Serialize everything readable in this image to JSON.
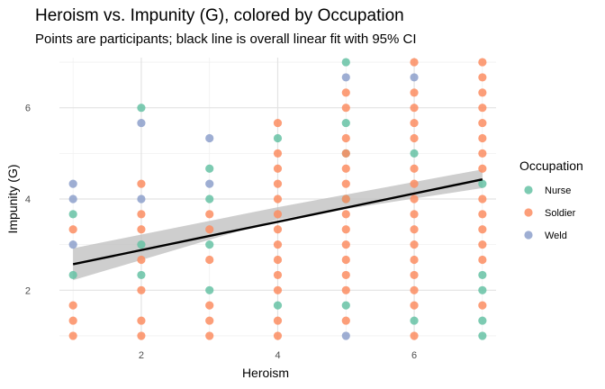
{
  "chart_data": {
    "type": "scatter",
    "title": "Heroism vs. Impunity (G), colored by Occupation",
    "subtitle": "Points are participants; black line is overall linear fit with 95% CI",
    "xlabel": "Heroism",
    "ylabel": "Impunity (G)",
    "xlim": [
      0.8,
      7.2
    ],
    "ylim": [
      0.9,
      7.1
    ],
    "x_ticks": [
      2,
      4,
      6
    ],
    "y_ticks": [
      2,
      4,
      6
    ],
    "grid": true,
    "legend": {
      "title": "Occupation",
      "position": "right"
    },
    "series": [
      {
        "name": "Nurse",
        "color": "#66C2A5",
        "points": [
          [
            1,
            2.333
          ],
          [
            1,
            3.667
          ],
          [
            2,
            6
          ],
          [
            2,
            3
          ],
          [
            2,
            2.333
          ],
          [
            3,
            4.667
          ],
          [
            3,
            4
          ],
          [
            3,
            3
          ],
          [
            3,
            2
          ],
          [
            4,
            5.333
          ],
          [
            4,
            1.667
          ],
          [
            5,
            7
          ],
          [
            5,
            5.667
          ],
          [
            5,
            5
          ],
          [
            5,
            4
          ],
          [
            5,
            1.667
          ],
          [
            6,
            5
          ],
          [
            6,
            1.333
          ],
          [
            7,
            4.333
          ],
          [
            7,
            2.333
          ],
          [
            7,
            2
          ],
          [
            7,
            1.333
          ],
          [
            7,
            1
          ]
        ]
      },
      {
        "name": "Soldier",
        "color": "#FC8D62",
        "points": [
          [
            1,
            3.333
          ],
          [
            1,
            1.667
          ],
          [
            1,
            1.333
          ],
          [
            1,
            1
          ],
          [
            2,
            4.333
          ],
          [
            2,
            3.667
          ],
          [
            2,
            3.333
          ],
          [
            2,
            2.667
          ],
          [
            2,
            2
          ],
          [
            2,
            1.333
          ],
          [
            2,
            1
          ],
          [
            3,
            3.667
          ],
          [
            3,
            3.333
          ],
          [
            3,
            2.667
          ],
          [
            3,
            1.667
          ],
          [
            3,
            1.333
          ],
          [
            3,
            1
          ],
          [
            4,
            5.667
          ],
          [
            4,
            5
          ],
          [
            4,
            4.667
          ],
          [
            4,
            4.333
          ],
          [
            4,
            4
          ],
          [
            4,
            3.667
          ],
          [
            4,
            3.333
          ],
          [
            4,
            3
          ],
          [
            4,
            2.667
          ],
          [
            4,
            2.333
          ],
          [
            4,
            2
          ],
          [
            4,
            1.333
          ],
          [
            4,
            1
          ],
          [
            5,
            6.333
          ],
          [
            5,
            6
          ],
          [
            5,
            5.333
          ],
          [
            5,
            5
          ],
          [
            5,
            4.667
          ],
          [
            5,
            4.333
          ],
          [
            5,
            4
          ],
          [
            5,
            3.667
          ],
          [
            5,
            3.333
          ],
          [
            5,
            3
          ],
          [
            5,
            2.667
          ],
          [
            5,
            2.333
          ],
          [
            5,
            2
          ],
          [
            5,
            1.333
          ],
          [
            6,
            7
          ],
          [
            6,
            6.333
          ],
          [
            6,
            6
          ],
          [
            6,
            5.667
          ],
          [
            6,
            5.333
          ],
          [
            6,
            4.667
          ],
          [
            6,
            4.333
          ],
          [
            6,
            4
          ],
          [
            6,
            3.667
          ],
          [
            6,
            3.333
          ],
          [
            6,
            3
          ],
          [
            6,
            2.667
          ],
          [
            6,
            2.333
          ],
          [
            6,
            2
          ],
          [
            6,
            1.667
          ],
          [
            6,
            1
          ],
          [
            7,
            7
          ],
          [
            7,
            6.667
          ],
          [
            7,
            6.333
          ],
          [
            7,
            6
          ],
          [
            7,
            5.667
          ],
          [
            7,
            5.333
          ],
          [
            7,
            5
          ],
          [
            7,
            4.667
          ],
          [
            7,
            4
          ],
          [
            7,
            3.667
          ],
          [
            7,
            3.333
          ],
          [
            7,
            3
          ],
          [
            7,
            2.667
          ],
          [
            7,
            1.667
          ]
        ]
      },
      {
        "name": "Weld",
        "color": "#8DA0CB",
        "points": [
          [
            1,
            4.333
          ],
          [
            1,
            4
          ],
          [
            1,
            3
          ],
          [
            2,
            5.667
          ],
          [
            2,
            4
          ],
          [
            3,
            5.333
          ],
          [
            3,
            4.333
          ],
          [
            5,
            6.667
          ],
          [
            5,
            1
          ],
          [
            6,
            6.667
          ]
        ]
      }
    ],
    "fit": {
      "method": "linear",
      "x_range": [
        1,
        7
      ],
      "y_start": 2.57,
      "y_end": 4.43,
      "ci_lower_start": 2.22,
      "ci_upper_start": 2.92,
      "ci_lower_mid": 3.55,
      "ci_upper_mid": 3.82,
      "ci_lower_end": 4.24,
      "ci_upper_end": 4.65,
      "line_color": "#000000",
      "band_color": "#BEBEBE"
    }
  }
}
